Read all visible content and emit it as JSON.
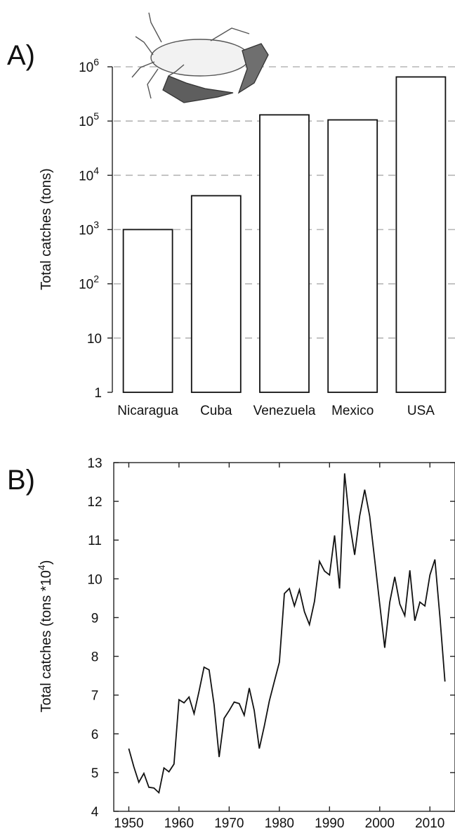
{
  "panels": {
    "a_label": "A)",
    "b_label": "B)"
  },
  "chart_data": [
    {
      "type": "bar",
      "title": "",
      "xlabel": "",
      "ylabel": "Total catches (tons)",
      "yscale": "log",
      "ylim": [
        1,
        1000000
      ],
      "grid": "horizontal dashed",
      "categories": [
        "Nicaragua",
        "Cuba",
        "Venezuela",
        "Mexico",
        "USA"
      ],
      "values": [
        1000,
        4200,
        130000,
        105000,
        650000
      ],
      "yticks": [
        {
          "value": 1,
          "base": "1",
          "exp": ""
        },
        {
          "value": 10,
          "base": "10",
          "exp": ""
        },
        {
          "value": 100,
          "base": "10",
          "exp": "2"
        },
        {
          "value": 1000,
          "base": "10",
          "exp": "3"
        },
        {
          "value": 10000,
          "base": "10",
          "exp": "4"
        },
        {
          "value": 100000,
          "base": "10",
          "exp": "5"
        },
        {
          "value": 1000000,
          "base": "10",
          "exp": "6"
        }
      ],
      "colors": {
        "bar_fill": "#ffffff",
        "bar_stroke": "#111111",
        "grid": "#b5b5b5"
      }
    },
    {
      "type": "line",
      "title": "",
      "xlabel": "",
      "ylabel_main": "Total catches (tons *10",
      "ylabel_sup": "4",
      "ylabel_end": ")",
      "xlim": [
        1947,
        2015
      ],
      "ylim": [
        4,
        13
      ],
      "xticks": [
        1950,
        1960,
        1970,
        1980,
        1990,
        2000,
        2010
      ],
      "yticks": [
        4,
        5,
        6,
        7,
        8,
        9,
        10,
        11,
        12,
        13
      ],
      "x": [
        1950,
        1951,
        1952,
        1953,
        1954,
        1955,
        1956,
        1957,
        1958,
        1959,
        1960,
        1961,
        1962,
        1963,
        1964,
        1965,
        1966,
        1967,
        1968,
        1969,
        1970,
        1971,
        1972,
        1973,
        1974,
        1975,
        1976,
        1977,
        1978,
        1979,
        1980,
        1981,
        1982,
        1983,
        1984,
        1985,
        1986,
        1987,
        1988,
        1989,
        1990,
        1991,
        1992,
        1993,
        1994,
        1995,
        1996,
        1997,
        1998,
        1999,
        2000,
        2001,
        2002,
        2003,
        2004,
        2005,
        2006,
        2007,
        2008,
        2009,
        2010,
        2011,
        2012,
        2013
      ],
      "y": [
        5.62,
        5.15,
        4.75,
        4.98,
        4.62,
        4.6,
        4.48,
        5.12,
        5.02,
        5.22,
        6.88,
        6.8,
        6.95,
        6.52,
        7.1,
        7.72,
        7.65,
        6.75,
        5.4,
        6.4,
        6.6,
        6.82,
        6.78,
        6.48,
        7.18,
        6.6,
        5.62,
        6.2,
        6.85,
        7.35,
        7.85,
        9.62,
        9.75,
        9.3,
        9.72,
        9.15,
        8.82,
        9.42,
        10.45,
        10.2,
        10.1,
        11.12,
        9.75,
        12.72,
        11.45,
        10.62,
        11.62,
        12.3,
        11.62,
        10.5,
        9.35,
        8.22,
        9.4,
        10.05,
        9.35,
        9.05,
        10.22,
        8.92,
        9.4,
        9.3,
        10.1,
        10.5,
        9.0,
        7.35
      ],
      "colors": {
        "line": "#111111"
      }
    }
  ]
}
